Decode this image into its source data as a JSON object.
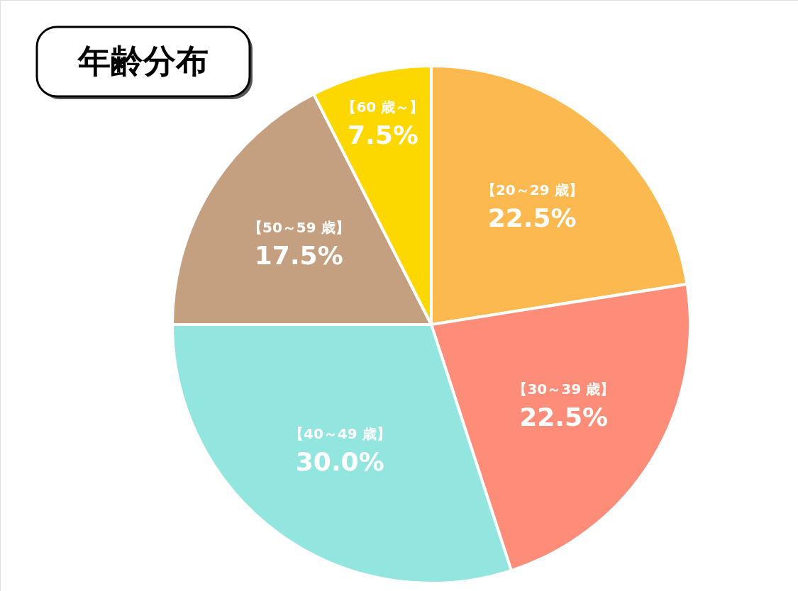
{
  "chart_data": {
    "type": "pie",
    "title": "年齢分布",
    "categories": [
      "【20～29 歳】",
      "【30～39 歳】",
      "【40～49 歳】",
      "【50～59 歳】",
      "【60 歳～】"
    ],
    "values": [
      22.5,
      22.5,
      30.0,
      17.5,
      7.5
    ],
    "value_labels": [
      "22.5%",
      "22.5%",
      "30.0%",
      "17.5%",
      "7.5%"
    ],
    "colors": [
      "#fbb94f",
      "#fd8c78",
      "#93e6e0",
      "#c4a080",
      "#fdd700"
    ]
  }
}
